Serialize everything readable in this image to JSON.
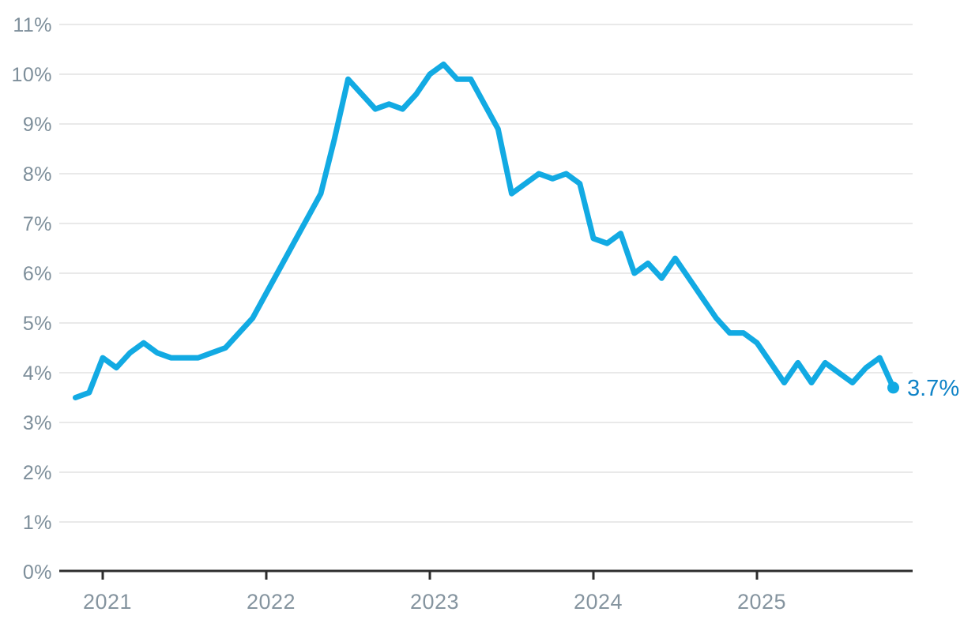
{
  "chart_data": {
    "type": "line",
    "title": "",
    "grid": "horizontal",
    "legend": "none",
    "ylim": [
      0,
      11
    ],
    "y_tick_labels": [
      "0%",
      "1%",
      "2%",
      "3%",
      "4%",
      "5%",
      "6%",
      "7%",
      "8%",
      "9%",
      "10%",
      "11%"
    ],
    "x_ticks": [
      {
        "label": "2021",
        "month": "2021-01"
      },
      {
        "label": "2022",
        "month": "2022-01"
      },
      {
        "label": "2023",
        "month": "2023-01"
      },
      {
        "label": "2024",
        "month": "2024-01"
      },
      {
        "label": "2025",
        "month": "2025-01"
      }
    ],
    "months": [
      "2020-11",
      "2020-12",
      "2021-01",
      "2021-02",
      "2021-03",
      "2021-04",
      "2021-05",
      "2021-06",
      "2021-07",
      "2021-08",
      "2021-09",
      "2021-10",
      "2021-11",
      "2021-12",
      "2022-01",
      "2022-02",
      "2022-03",
      "2022-04",
      "2022-05",
      "2022-06",
      "2022-07",
      "2022-08",
      "2022-09",
      "2022-10",
      "2022-11",
      "2022-12",
      "2023-01",
      "2023-02",
      "2023-03",
      "2023-04",
      "2023-05",
      "2023-06",
      "2023-07",
      "2023-08",
      "2023-09",
      "2023-10",
      "2023-11",
      "2023-12",
      "2024-01",
      "2024-02",
      "2024-03",
      "2024-04",
      "2024-05",
      "2024-06",
      "2024-07",
      "2024-08",
      "2024-09",
      "2024-10",
      "2024-11",
      "2024-12",
      "2025-01",
      "2025-02",
      "2025-03",
      "2025-04",
      "2025-05",
      "2025-06",
      "2025-07",
      "2025-08",
      "2025-09",
      "2025-10",
      "2025-11"
    ],
    "values": [
      3.5,
      3.6,
      4.3,
      4.1,
      4.4,
      4.6,
      4.4,
      4.3,
      4.3,
      4.3,
      4.4,
      4.5,
      4.8,
      5.1,
      5.6,
      6.1,
      6.6,
      7.1,
      7.6,
      8.7,
      9.9,
      9.6,
      9.3,
      9.4,
      9.3,
      9.6,
      10.0,
      10.2,
      9.9,
      9.9,
      9.4,
      8.9,
      7.6,
      7.8,
      8.0,
      7.9,
      8.0,
      7.8,
      6.7,
      6.6,
      6.8,
      6.0,
      6.2,
      5.9,
      6.3,
      5.9,
      5.5,
      5.1,
      4.8,
      4.8,
      4.6,
      4.2,
      3.8,
      4.2,
      3.8,
      4.2,
      4.0,
      3.8,
      4.1,
      4.3,
      3.7
    ],
    "end_label": "3.7%",
    "colors": {
      "line": "#12aae3",
      "end_dot": "#12aae3",
      "end_label": "#0f83c7",
      "gridline": "#e9e9e9",
      "axis": "#2d2d2d",
      "y_tick_text": "#7d8e9a",
      "x_tick_text": "#85949f",
      "background": "#ffffff"
    }
  }
}
